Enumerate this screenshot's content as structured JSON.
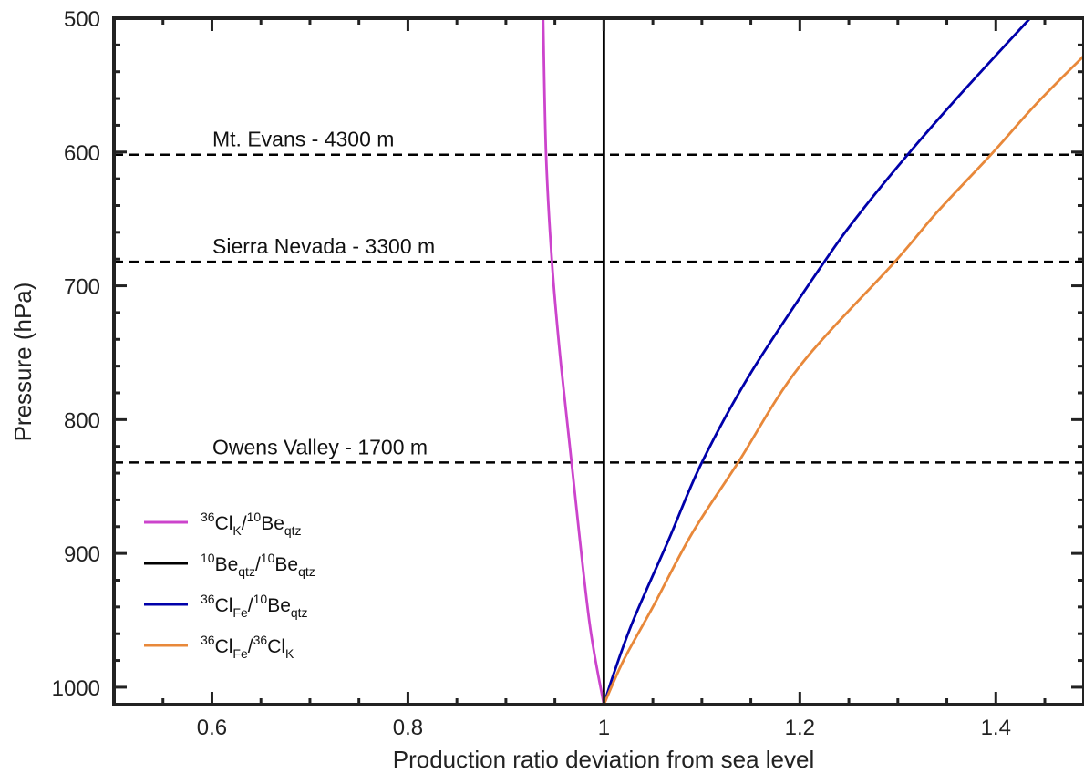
{
  "chart_data": {
    "type": "line",
    "title": "",
    "xlabel": "Production ratio deviation from sea level",
    "ylabel": "Pressure (hPa)",
    "xlim": [
      0.5,
      1.49
    ],
    "ylim": [
      1013,
      500
    ],
    "y_inverted": true,
    "x_ticks": [
      0.6,
      0.8,
      1,
      1.2,
      1.4
    ],
    "x_tick_labels": [
      "0.6",
      "0.8",
      "1",
      "1.2",
      "1.4"
    ],
    "y_ticks": [
      500,
      600,
      700,
      800,
      900,
      1000
    ],
    "y_tick_labels": [
      "500",
      "600",
      "700",
      "800",
      "900",
      "1000"
    ],
    "grid": false,
    "legend_position": "bottom-left",
    "reference_lines": [
      {
        "label": "Mt. Evans - 4300 m",
        "pressure": 602
      },
      {
        "label": "Sierra Nevada - 3300 m",
        "pressure": 682
      },
      {
        "label": "Owens Valley - 1700 m",
        "pressure": 832
      }
    ],
    "series": [
      {
        "color": "#cc44cc",
        "legend": {
          "a_sup": "36",
          "a": "Cl",
          "a_sub": "K",
          "b_sup": "10",
          "b": "Be",
          "b_sub": "qtz"
        },
        "x": [
          1.0,
          0.985,
          0.967,
          0.955,
          0.947,
          0.941,
          0.938
        ],
        "y": [
          1013,
          950,
          832,
          750,
          682,
          602,
          500
        ]
      },
      {
        "color": "#000000",
        "legend": {
          "a_sup": "10",
          "a": "Be",
          "a_sub": "qtz",
          "b_sup": "10",
          "b": "Be",
          "b_sub": "qtz"
        },
        "x": [
          1.0,
          1.0
        ],
        "y": [
          1013,
          500
        ]
      },
      {
        "color": "#0000aa",
        "legend": {
          "a_sup": "36",
          "a": "Cl",
          "a_sub": "Fe",
          "b_sup": "10",
          "b": "Be",
          "b_sub": "qtz"
        },
        "x": [
          1.0,
          1.01,
          1.03,
          1.066,
          1.1,
          1.15,
          1.225,
          1.262,
          1.31,
          1.36,
          1.435
        ],
        "y": [
          1013,
          990,
          950,
          890,
          832,
          765,
          682,
          645,
          602,
          560,
          500
        ]
      },
      {
        "color": "#e8883a",
        "legend": {
          "a_sup": "36",
          "a": "Cl",
          "a_sub": "Fe",
          "b_sup": "36",
          "b": "Cl",
          "b_sub": "K"
        },
        "x": [
          1.0,
          1.02,
          1.05,
          1.09,
          1.137,
          1.2,
          1.297,
          1.34,
          1.395,
          1.44,
          1.49
        ],
        "y": [
          1013,
          980,
          940,
          885,
          832,
          760,
          682,
          645,
          602,
          565,
          528
        ]
      }
    ]
  }
}
